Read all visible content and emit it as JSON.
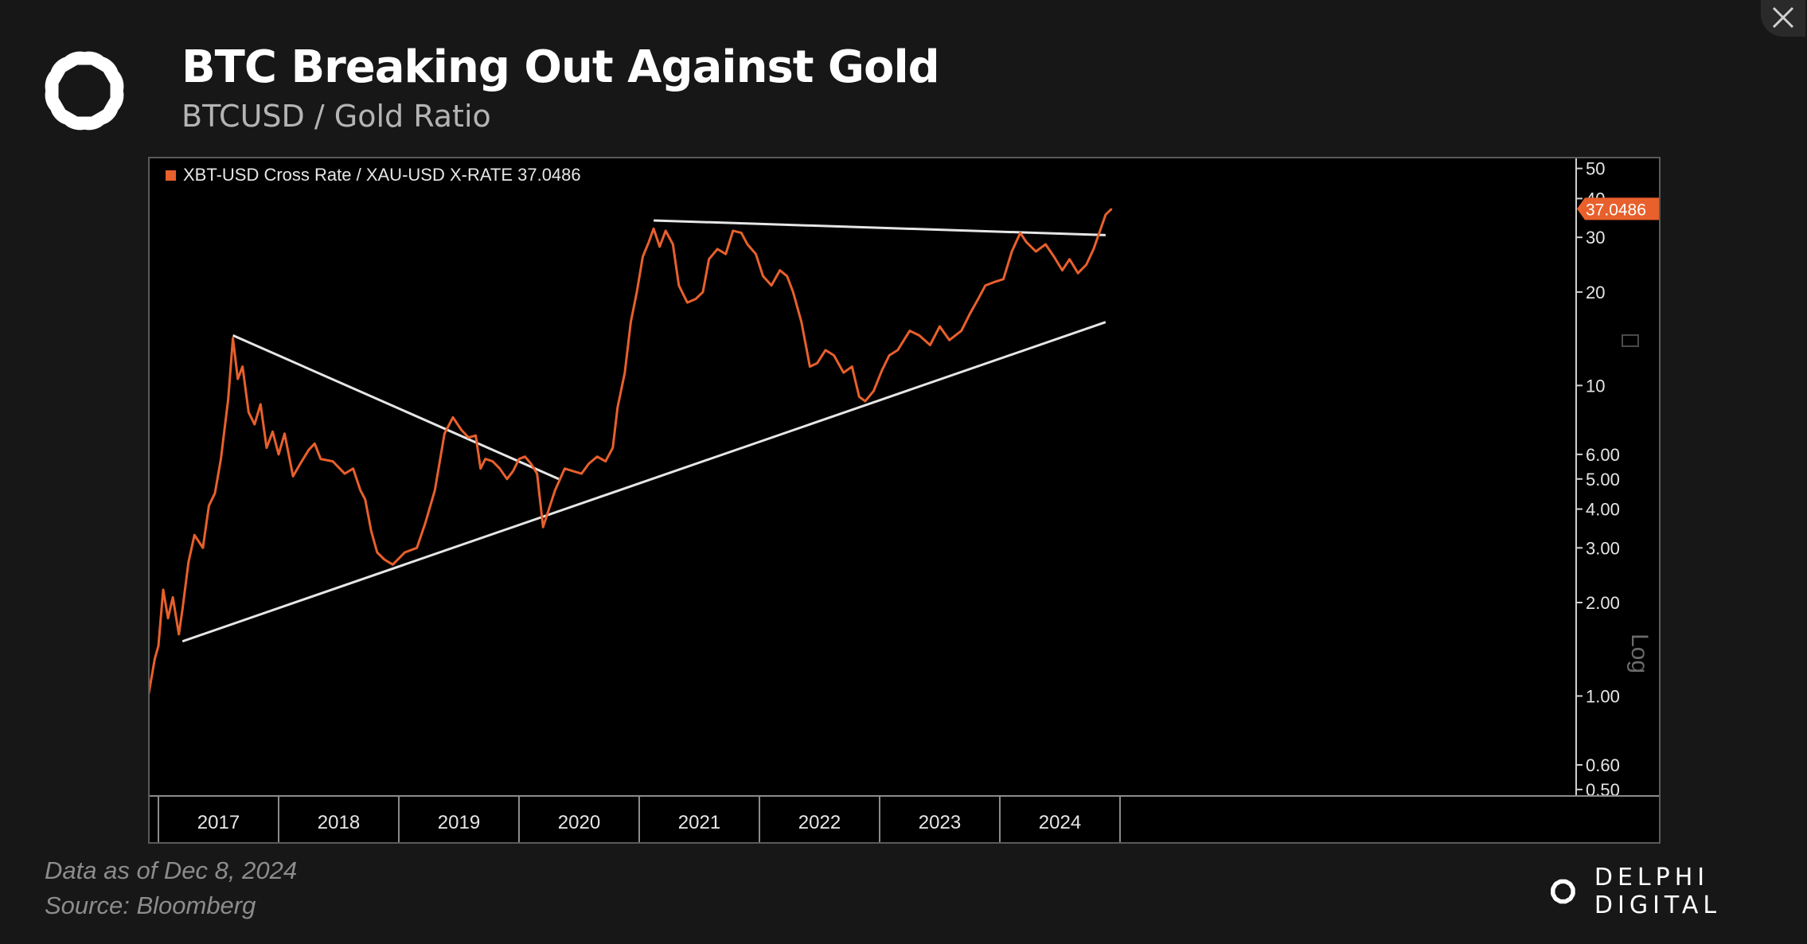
{
  "header": {
    "title": "BTC Breaking Out Against Gold",
    "subtitle": "BTCUSD / Gold Ratio"
  },
  "footer": {
    "date_text": "Data as of Dec 8, 2024",
    "source_text": "Source: Bloomberg"
  },
  "brand": {
    "name": "DELPHI DIGITAL",
    "logo_icon": "delphi-knot-icon"
  },
  "window": {
    "close_icon": "close-icon"
  },
  "colors": {
    "background": "#171717",
    "plot_background": "#000000",
    "series": "#e8602c",
    "trendline": "#e6e6e6",
    "text": "#ffffff"
  },
  "chart_data": {
    "type": "line",
    "title": "",
    "legend": {
      "label": "XBT-USD Cross Rate / XAU-USD X-RATE 37.0486",
      "placement": "top-left"
    },
    "last_value_label": "37.0486",
    "y_scale": "log",
    "ylim": [
      0.46,
      52
    ],
    "y_ticks": [
      {
        "value": 50,
        "label": "50"
      },
      {
        "value": 40,
        "label": "40"
      },
      {
        "value": 30,
        "label": "30"
      },
      {
        "value": 20,
        "label": "20"
      },
      {
        "value": 10,
        "label": "10"
      },
      {
        "value": 6,
        "label": "6.00"
      },
      {
        "value": 5,
        "label": "5.00"
      },
      {
        "value": 4,
        "label": "4.00"
      },
      {
        "value": 3,
        "label": "3.00"
      },
      {
        "value": 2,
        "label": "2.00"
      },
      {
        "value": 1,
        "label": "1.00"
      },
      {
        "value": 0.6,
        "label": "0.60"
      },
      {
        "value": 0.5,
        "label": "0.50"
      }
    ],
    "y_axis_title": "Log",
    "xlim": [
      2016.5,
      2024.95
    ],
    "x_ticks": [
      "2017",
      "2018",
      "2019",
      "2020",
      "2021",
      "2022",
      "2023",
      "2024"
    ],
    "grid": false,
    "series": [
      {
        "values": [
          [
            2016.5,
            0.66
          ],
          [
            2016.55,
            0.78
          ],
          [
            2016.6,
            0.7
          ],
          [
            2016.67,
            0.8
          ],
          [
            2016.72,
            0.8
          ],
          [
            2016.78,
            0.93
          ],
          [
            2016.83,
            0.8
          ],
          [
            2016.88,
            0.9
          ],
          [
            2016.92,
            1.02
          ],
          [
            2016.97,
            1.32
          ],
          [
            2017.0,
            1.45
          ],
          [
            2017.04,
            2.2
          ],
          [
            2017.08,
            1.78
          ],
          [
            2017.12,
            2.08
          ],
          [
            2017.17,
            1.58
          ],
          [
            2017.2,
            1.9
          ],
          [
            2017.25,
            2.7
          ],
          [
            2017.3,
            3.3
          ],
          [
            2017.37,
            3.0
          ],
          [
            2017.42,
            4.1
          ],
          [
            2017.47,
            4.5
          ],
          [
            2017.52,
            5.8
          ],
          [
            2017.58,
            9.0
          ],
          [
            2017.62,
            14.2
          ],
          [
            2017.66,
            10.5
          ],
          [
            2017.7,
            11.5
          ],
          [
            2017.75,
            8.2
          ],
          [
            2017.8,
            7.5
          ],
          [
            2017.85,
            8.7
          ],
          [
            2017.9,
            6.3
          ],
          [
            2017.95,
            7.1
          ],
          [
            2018.0,
            6.0
          ],
          [
            2018.05,
            7.0
          ],
          [
            2018.12,
            5.1
          ],
          [
            2018.18,
            5.6
          ],
          [
            2018.25,
            6.2
          ],
          [
            2018.3,
            6.5
          ],
          [
            2018.35,
            5.8
          ],
          [
            2018.45,
            5.7
          ],
          [
            2018.55,
            5.2
          ],
          [
            2018.62,
            5.4
          ],
          [
            2018.68,
            4.6
          ],
          [
            2018.72,
            4.3
          ],
          [
            2018.77,
            3.4
          ],
          [
            2018.82,
            2.9
          ],
          [
            2018.88,
            2.75
          ],
          [
            2018.95,
            2.65
          ],
          [
            2019.05,
            2.9
          ],
          [
            2019.15,
            3.0
          ],
          [
            2019.22,
            3.6
          ],
          [
            2019.3,
            4.6
          ],
          [
            2019.38,
            7.0
          ],
          [
            2019.45,
            7.9
          ],
          [
            2019.52,
            7.2
          ],
          [
            2019.58,
            6.8
          ],
          [
            2019.64,
            6.9
          ],
          [
            2019.68,
            5.4
          ],
          [
            2019.72,
            5.8
          ],
          [
            2019.78,
            5.7
          ],
          [
            2019.84,
            5.4
          ],
          [
            2019.9,
            5.0
          ],
          [
            2019.95,
            5.3
          ],
          [
            2020.0,
            5.8
          ],
          [
            2020.05,
            5.9
          ],
          [
            2020.1,
            5.6
          ],
          [
            2020.15,
            5.2
          ],
          [
            2020.2,
            3.5
          ],
          [
            2020.24,
            3.9
          ],
          [
            2020.3,
            4.6
          ],
          [
            2020.38,
            5.4
          ],
          [
            2020.45,
            5.3
          ],
          [
            2020.52,
            5.2
          ],
          [
            2020.58,
            5.6
          ],
          [
            2020.65,
            5.9
          ],
          [
            2020.72,
            5.7
          ],
          [
            2020.78,
            6.3
          ],
          [
            2020.82,
            8.5
          ],
          [
            2020.88,
            11.0
          ],
          [
            2020.93,
            16.0
          ],
          [
            2020.98,
            20.0
          ],
          [
            2021.03,
            26.0
          ],
          [
            2021.08,
            29.0
          ],
          [
            2021.12,
            32.0
          ],
          [
            2021.17,
            28.0
          ],
          [
            2021.22,
            31.5
          ],
          [
            2021.28,
            28.5
          ],
          [
            2021.33,
            21.0
          ],
          [
            2021.4,
            18.5
          ],
          [
            2021.47,
            19.0
          ],
          [
            2021.53,
            20.0
          ],
          [
            2021.58,
            25.5
          ],
          [
            2021.65,
            27.5
          ],
          [
            2021.72,
            26.5
          ],
          [
            2021.78,
            31.5
          ],
          [
            2021.85,
            31.0
          ],
          [
            2021.9,
            28.5
          ],
          [
            2021.97,
            26.5
          ],
          [
            2022.03,
            22.5
          ],
          [
            2022.1,
            21.0
          ],
          [
            2022.17,
            23.5
          ],
          [
            2022.23,
            22.5
          ],
          [
            2022.28,
            20.0
          ],
          [
            2022.35,
            16.0
          ],
          [
            2022.42,
            11.5
          ],
          [
            2022.48,
            11.8
          ],
          [
            2022.55,
            13.0
          ],
          [
            2022.62,
            12.5
          ],
          [
            2022.7,
            11.0
          ],
          [
            2022.77,
            11.5
          ],
          [
            2022.83,
            9.2
          ],
          [
            2022.88,
            8.9
          ],
          [
            2022.95,
            9.6
          ],
          [
            2023.02,
            11.2
          ],
          [
            2023.08,
            12.5
          ],
          [
            2023.15,
            13.0
          ],
          [
            2023.25,
            15.0
          ],
          [
            2023.33,
            14.5
          ],
          [
            2023.42,
            13.5
          ],
          [
            2023.5,
            15.5
          ],
          [
            2023.58,
            14.0
          ],
          [
            2023.68,
            15.0
          ],
          [
            2023.75,
            17.0
          ],
          [
            2023.82,
            19.0
          ],
          [
            2023.88,
            21.0
          ],
          [
            2023.95,
            21.5
          ],
          [
            2024.03,
            22.0
          ],
          [
            2024.1,
            27.0
          ],
          [
            2024.17,
            31.0
          ],
          [
            2024.22,
            29.0
          ],
          [
            2024.3,
            27.0
          ],
          [
            2024.38,
            28.5
          ],
          [
            2024.45,
            26.0
          ],
          [
            2024.52,
            23.5
          ],
          [
            2024.58,
            25.5
          ],
          [
            2024.65,
            23.0
          ],
          [
            2024.72,
            24.5
          ],
          [
            2024.78,
            27.5
          ],
          [
            2024.84,
            32.0
          ],
          [
            2024.88,
            35.5
          ],
          [
            2024.93,
            37.0486
          ]
        ]
      }
    ],
    "trendlines": [
      {
        "from": [
          2017.2,
          1.5
        ],
        "to": [
          2024.88,
          16.0
        ]
      },
      {
        "from": [
          2017.62,
          14.5
        ],
        "to": [
          2020.33,
          5.0
        ]
      },
      {
        "from": [
          2021.12,
          34.0
        ],
        "to": [
          2024.88,
          30.5
        ]
      }
    ]
  }
}
